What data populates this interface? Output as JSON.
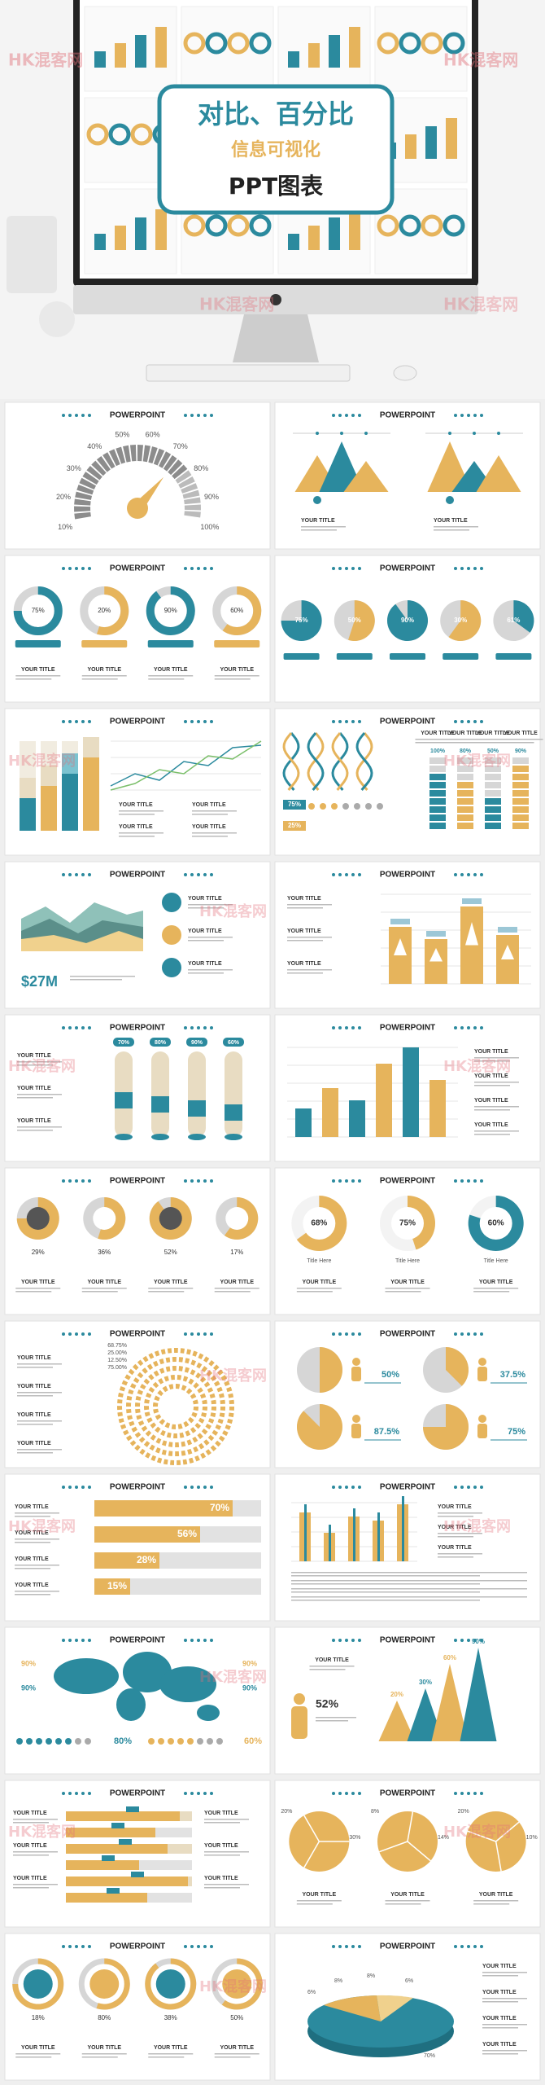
{
  "hero": {
    "title_line1": "对比、百分比",
    "title_line2": "信息可视化",
    "title_line3": "PPT图表"
  },
  "watermark": "HK混客网",
  "slides": [
    {
      "heading": "POWERPOINT",
      "labels": [
        "10%",
        "20%",
        "30%",
        "40%",
        "50%",
        "60%",
        "70%",
        "80%",
        "90%",
        "100%"
      ]
    },
    {
      "heading": "POWERPOINT",
      "titles": [
        "YOUR TITLE",
        "YOUR TITLE"
      ]
    },
    {
      "heading": "POWERPOINT",
      "labels": [
        "75%",
        "20%",
        "90%",
        "60%"
      ],
      "titles": [
        "YOUR TITLE",
        "YOUR TITLE",
        "YOUR TITLE",
        "YOUR TITLE"
      ]
    },
    {
      "heading": "POWERPOINT",
      "labels": [
        "75%",
        "50%",
        "90%",
        "30%",
        "61%"
      ]
    },
    {
      "heading": "POWERPOINT",
      "titles": [
        "YOUR TITLE",
        "YOUR TITLE",
        "YOUR TITLE",
        "YOUR TITLE"
      ]
    },
    {
      "heading": "POWERPOINT",
      "labels": [
        "75%",
        "25%",
        "100%",
        "80%",
        "50%",
        "90%"
      ],
      "titles": [
        "YOUR TITLE",
        "YOUR TITLE",
        "YOUR TITLE",
        "YOUR TITLE"
      ]
    },
    {
      "heading": "POWERPOINT",
      "labels": [
        "$27M"
      ],
      "titles": [
        "YOUR TITLE",
        "YOUR TITLE",
        "YOUR TITLE"
      ]
    },
    {
      "heading": "POWERPOINT",
      "titles": [
        "YOUR TITLE",
        "YOUR TITLE",
        "YOUR TITLE"
      ]
    },
    {
      "heading": "POWERPOINT",
      "labels": [
        "70%",
        "80%",
        "90%",
        "60%"
      ],
      "titles": [
        "YOUR TITLE",
        "YOUR TITLE",
        "YOUR TITLE"
      ]
    },
    {
      "heading": "POWERPOINT",
      "titles": [
        "YOUR TITLE",
        "YOUR TITLE",
        "YOUR TITLE",
        "YOUR TITLE"
      ]
    },
    {
      "heading": "POWERPOINT",
      "labels": [
        "29%",
        "36%",
        "52%",
        "17%"
      ],
      "titles": [
        "YOUR TITLE",
        "YOUR TITLE",
        "YOUR TITLE",
        "YOUR TITLE"
      ]
    },
    {
      "heading": "POWERPOINT",
      "labels": [
        "68%",
        "75%",
        "60%"
      ],
      "captions": [
        "Title Here",
        "Title Here",
        "Title Here"
      ],
      "titles": [
        "YOUR TITLE",
        "YOUR TITLE",
        "YOUR TITLE"
      ]
    },
    {
      "heading": "POWERPOINT",
      "labels": [
        "68.75%",
        "25.00%",
        "12.50%",
        "75.00%"
      ],
      "titles": [
        "YOUR TITLE",
        "YOUR TITLE",
        "YOUR TITLE",
        "YOUR TITLE"
      ]
    },
    {
      "heading": "POWERPOINT",
      "labels": [
        "50%",
        "37.5%",
        "87.5%",
        "75%"
      ]
    },
    {
      "heading": "POWERPOINT",
      "labels": [
        "70%",
        "56%",
        "28%",
        "15%"
      ],
      "titles": [
        "YOUR TITLE",
        "YOUR TITLE",
        "YOUR TITLE",
        "YOUR TITLE"
      ]
    },
    {
      "heading": "POWERPOINT",
      "titles": [
        "YOUR TITLE",
        "YOUR TITLE",
        "YOUR TITLE"
      ]
    },
    {
      "heading": "POWERPOINT",
      "labels": [
        "90%",
        "90%",
        "90%",
        "90%",
        "80%",
        "60%"
      ]
    },
    {
      "heading": "POWERPOINT",
      "labels": [
        "52%",
        "20%",
        "30%",
        "60%",
        "90%"
      ],
      "titles": [
        "YOUR TITLE"
      ]
    },
    {
      "heading": "POWERPOINT",
      "titles": [
        "YOUR TITLE",
        "YOUR TITLE",
        "YOUR TITLE",
        "YOUR TITLE",
        "YOUR TITLE",
        "YOUR TITLE"
      ]
    },
    {
      "heading": "POWERPOINT",
      "labels": [
        "20%",
        "30%",
        "8%",
        "14%",
        "20%",
        "10%"
      ],
      "titles": [
        "YOUR TITLE",
        "YOUR TITLE",
        "YOUR TITLE"
      ]
    },
    {
      "heading": "POWERPOINT",
      "labels": [
        "18%",
        "80%",
        "38%",
        "50%"
      ],
      "titles": [
        "YOUR TITLE",
        "YOUR TITLE",
        "YOUR TITLE",
        "YOUR TITLE"
      ]
    },
    {
      "heading": "POWERPOINT",
      "labels": [
        "6%",
        "8%",
        "8%",
        "6%",
        "70%"
      ],
      "titles": [
        "YOUR TITLE",
        "YOUR TITLE",
        "YOUR TITLE",
        "YOUR TITLE"
      ]
    }
  ]
}
